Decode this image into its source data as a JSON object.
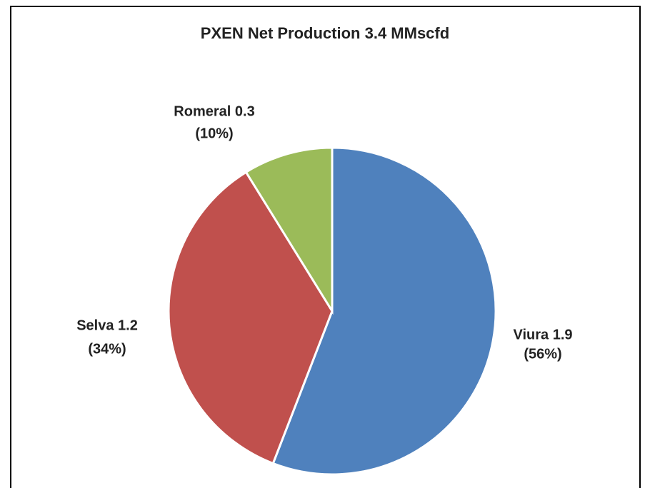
{
  "chart_data": {
    "type": "pie",
    "title": "PXEN Net Production 3.4 MMscfd",
    "values": [
      1.9,
      1.2,
      0.3
    ],
    "value_labels": [
      "Viura 1.9",
      "Selva 1.2",
      "Romeral 0.3"
    ],
    "percent_labels": [
      "(56%)",
      "(34%)",
      "(10%)"
    ],
    "colors": [
      "#4f81bd",
      "#c0504d",
      "#9bbb59"
    ]
  }
}
